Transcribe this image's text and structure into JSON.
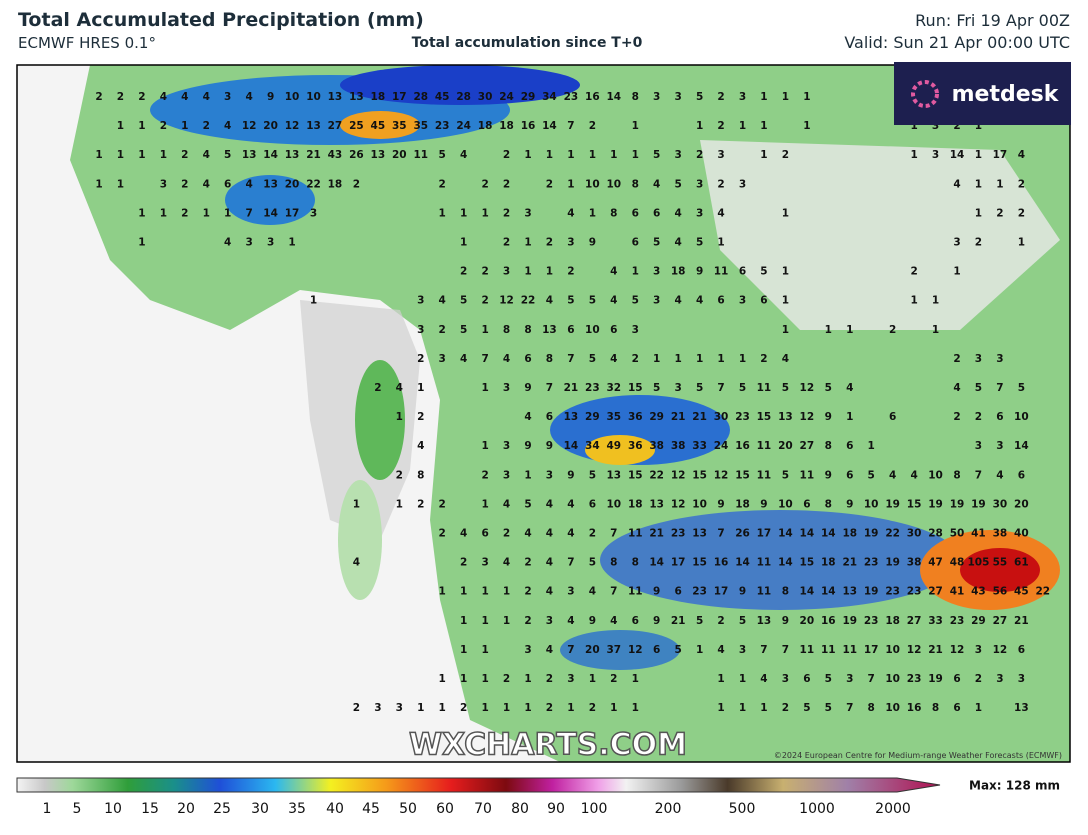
{
  "header": {
    "title": "Total Accumulated Precipitation (mm)",
    "model": "ECMWF HRES 0.1°",
    "subtitle": "Total accumulation since T+0",
    "run": "Run: Fri 19 Apr 00Z",
    "valid": "Valid: Sun 21 Apr 00:00 UTC"
  },
  "logo": "metdesk",
  "watermark": "WXCHARTS.COM",
  "copyright": "©2024 European Centre for Medium-range Weather Forecasts (ECMWF)",
  "legend": {
    "labels": [
      "1",
      "5",
      "10",
      "15",
      "20",
      "25",
      "30",
      "35",
      "40",
      "45",
      "50",
      "60",
      "70",
      "80",
      "90",
      "100",
      "200",
      "500",
      "1000",
      "2000"
    ],
    "max": "Max: 128 mm"
  },
  "map": {
    "rows": [
      [
        2,
        2,
        2,
        4,
        4,
        4,
        3,
        4,
        9,
        10,
        10,
        13,
        13,
        18,
        17,
        28,
        45,
        28,
        30,
        24,
        29,
        34,
        23,
        16,
        14,
        8,
        3,
        3,
        5,
        2,
        3,
        1,
        1,
        1
      ],
      [
        null,
        1,
        1,
        2,
        1,
        2,
        4,
        12,
        20,
        12,
        13,
        27,
        25,
        45,
        35,
        35,
        23,
        24,
        18,
        18,
        16,
        14,
        7,
        2,
        null,
        1,
        null,
        null,
        1,
        2,
        1,
        1,
        null,
        1,
        null,
        null,
        null,
        null,
        1,
        3,
        2,
        1
      ],
      [
        1,
        1,
        1,
        1,
        2,
        4,
        5,
        13,
        14,
        13,
        21,
        43,
        26,
        13,
        20,
        11,
        5,
        4,
        null,
        2,
        1,
        1,
        1,
        1,
        1,
        1,
        5,
        3,
        2,
        3,
        null,
        1,
        2,
        null,
        null,
        null,
        null,
        null,
        1,
        3,
        14,
        1,
        17,
        4
      ],
      [
        1,
        1,
        null,
        3,
        2,
        4,
        6,
        4,
        13,
        20,
        22,
        18,
        2,
        null,
        null,
        null,
        2,
        null,
        2,
        2,
        null,
        2,
        1,
        10,
        10,
        8,
        4,
        5,
        3,
        2,
        3,
        null,
        null,
        null,
        null,
        null,
        null,
        null,
        null,
        null,
        4,
        1,
        1,
        2
      ],
      [
        null,
        null,
        1,
        1,
        2,
        1,
        1,
        7,
        14,
        17,
        3,
        null,
        null,
        null,
        null,
        null,
        1,
        1,
        1,
        2,
        3,
        null,
        4,
        1,
        8,
        6,
        6,
        4,
        3,
        4,
        null,
        null,
        1,
        null,
        null,
        null,
        null,
        null,
        null,
        null,
        null,
        1,
        2,
        2
      ],
      [
        null,
        null,
        1,
        null,
        null,
        null,
        4,
        3,
        3,
        1,
        null,
        null,
        null,
        null,
        null,
        null,
        null,
        1,
        null,
        2,
        1,
        2,
        3,
        9,
        null,
        6,
        5,
        4,
        5,
        1,
        null,
        null,
        null,
        null,
        null,
        null,
        null,
        null,
        null,
        null,
        3,
        2,
        null,
        1
      ],
      [
        null,
        null,
        null,
        null,
        null,
        null,
        null,
        null,
        null,
        null,
        null,
        null,
        null,
        null,
        null,
        null,
        null,
        2,
        2,
        3,
        1,
        1,
        2,
        null,
        4,
        1,
        3,
        18,
        9,
        11,
        6,
        5,
        1,
        null,
        null,
        null,
        null,
        null,
        2,
        null,
        1
      ],
      [
        null,
        null,
        null,
        null,
        null,
        null,
        null,
        null,
        null,
        null,
        1,
        null,
        null,
        null,
        null,
        3,
        4,
        5,
        2,
        12,
        22,
        4,
        5,
        5,
        4,
        5,
        3,
        4,
        4,
        6,
        3,
        6,
        1,
        null,
        null,
        null,
        null,
        null,
        1,
        1
      ],
      [
        null,
        null,
        null,
        null,
        null,
        null,
        null,
        null,
        null,
        null,
        null,
        null,
        null,
        null,
        null,
        3,
        2,
        5,
        1,
        8,
        8,
        13,
        6,
        10,
        6,
        3,
        null,
        null,
        null,
        null,
        null,
        null,
        1,
        null,
        1,
        1,
        null,
        2,
        null,
        1
      ],
      [
        null,
        null,
        null,
        null,
        null,
        null,
        null,
        null,
        null,
        null,
        null,
        null,
        null,
        null,
        null,
        2,
        3,
        4,
        7,
        4,
        6,
        8,
        7,
        5,
        4,
        2,
        1,
        1,
        1,
        1,
        1,
        2,
        4,
        null,
        null,
        null,
        null,
        null,
        null,
        null,
        2,
        3,
        3
      ],
      [
        null,
        null,
        null,
        null,
        null,
        null,
        null,
        null,
        null,
        null,
        null,
        null,
        null,
        2,
        4,
        1,
        null,
        null,
        1,
        3,
        9,
        7,
        21,
        23,
        32,
        15,
        5,
        3,
        5,
        7,
        5,
        11,
        5,
        12,
        5,
        4,
        null,
        null,
        null,
        null,
        4,
        5,
        7,
        5
      ],
      [
        null,
        null,
        null,
        null,
        null,
        null,
        null,
        null,
        null,
        null,
        null,
        null,
        null,
        null,
        1,
        2,
        null,
        null,
        null,
        null,
        4,
        6,
        13,
        29,
        35,
        36,
        29,
        21,
        21,
        30,
        23,
        15,
        13,
        12,
        9,
        1,
        null,
        6,
        null,
        null,
        2,
        2,
        6,
        10
      ],
      [
        null,
        null,
        null,
        null,
        null,
        null,
        null,
        null,
        null,
        null,
        null,
        null,
        null,
        null,
        null,
        4,
        null,
        null,
        1,
        3,
        9,
        9,
        14,
        34,
        49,
        36,
        38,
        38,
        33,
        24,
        16,
        11,
        20,
        27,
        8,
        6,
        1,
        null,
        null,
        null,
        null,
        3,
        3,
        14
      ],
      [
        null,
        null,
        null,
        null,
        null,
        null,
        null,
        null,
        null,
        null,
        null,
        null,
        null,
        null,
        2,
        8,
        null,
        null,
        2,
        3,
        1,
        3,
        9,
        5,
        13,
        15,
        22,
        12,
        15,
        12,
        15,
        11,
        5,
        11,
        9,
        6,
        5,
        4,
        4,
        10,
        8,
        7,
        4,
        6
      ],
      [
        null,
        null,
        null,
        null,
        null,
        null,
        null,
        null,
        null,
        null,
        null,
        null,
        1,
        null,
        1,
        2,
        2,
        null,
        1,
        4,
        5,
        4,
        4,
        6,
        10,
        18,
        13,
        12,
        10,
        9,
        18,
        9,
        10,
        6,
        8,
        9,
        10,
        19,
        15,
        19,
        19,
        19,
        30,
        20
      ],
      [
        null,
        null,
        null,
        null,
        null,
        null,
        null,
        null,
        null,
        null,
        null,
        null,
        null,
        null,
        null,
        null,
        2,
        4,
        6,
        2,
        4,
        4,
        4,
        2,
        7,
        11,
        21,
        23,
        13,
        7,
        26,
        17,
        14,
        14,
        14,
        18,
        19,
        22,
        30,
        28,
        50,
        41,
        38,
        40
      ],
      [
        null,
        null,
        null,
        null,
        null,
        null,
        null,
        null,
        null,
        null,
        null,
        null,
        4,
        null,
        null,
        null,
        null,
        2,
        3,
        4,
        2,
        4,
        7,
        5,
        8,
        8,
        14,
        17,
        15,
        16,
        14,
        11,
        14,
        15,
        18,
        21,
        23,
        19,
        38,
        47,
        48,
        105,
        55,
        61
      ],
      [
        null,
        null,
        null,
        null,
        null,
        null,
        null,
        null,
        null,
        null,
        null,
        null,
        null,
        null,
        null,
        null,
        1,
        1,
        1,
        1,
        2,
        4,
        3,
        4,
        7,
        11,
        9,
        6,
        23,
        17,
        9,
        11,
        8,
        14,
        14,
        13,
        19,
        23,
        23,
        27,
        41,
        43,
        56,
        45,
        22
      ],
      [
        null,
        null,
        null,
        null,
        null,
        null,
        null,
        null,
        null,
        null,
        null,
        null,
        null,
        null,
        null,
        null,
        null,
        1,
        1,
        1,
        2,
        3,
        4,
        9,
        4,
        6,
        9,
        21,
        5,
        2,
        5,
        13,
        9,
        20,
        16,
        19,
        23,
        18,
        27,
        33,
        23,
        29,
        27,
        21
      ],
      [
        null,
        null,
        null,
        null,
        null,
        null,
        null,
        null,
        null,
        null,
        null,
        null,
        null,
        null,
        null,
        null,
        null,
        1,
        1,
        null,
        3,
        4,
        7,
        20,
        37,
        12,
        6,
        5,
        1,
        4,
        3,
        7,
        7,
        11,
        11,
        11,
        17,
        10,
        12,
        21,
        12,
        3,
        12,
        6
      ],
      [
        null,
        null,
        null,
        null,
        null,
        null,
        null,
        null,
        null,
        null,
        null,
        null,
        null,
        null,
        null,
        null,
        1,
        1,
        1,
        2,
        1,
        2,
        3,
        1,
        2,
        1,
        null,
        null,
        null,
        1,
        1,
        4,
        3,
        6,
        5,
        3,
        7,
        10,
        23,
        19,
        6,
        2,
        3,
        3
      ],
      [
        null,
        null,
        null,
        null,
        null,
        null,
        null,
        null,
        null,
        null,
        null,
        null,
        2,
        3,
        3,
        1,
        1,
        2,
        1,
        1,
        1,
        2,
        1,
        2,
        1,
        1,
        null,
        null,
        null,
        1,
        1,
        1,
        2,
        5,
        5,
        7,
        8,
        10,
        16,
        8,
        6,
        1,
        null,
        13
      ]
    ]
  }
}
